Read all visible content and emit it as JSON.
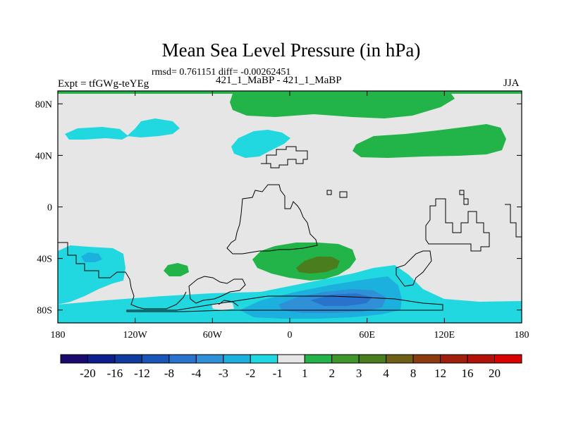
{
  "title": "Mean Sea Level Pressure (in hPa)",
  "stats_line": "rmsd= 0.761151 diff= -0.00262451",
  "experiment": "Expt = tfGWg-teYEg",
  "difference_label": "421_1_MaBP - 421_1_MaBP",
  "season": "JJA",
  "lon_ticks": [
    "180",
    "120W",
    "60W",
    "0",
    "60E",
    "120E",
    "180"
  ],
  "lat_ticks": [
    "80N",
    "40N",
    "0",
    "40S",
    "80S"
  ],
  "colorbar": {
    "labels": [
      "-20",
      "-16",
      "-12",
      "-8",
      "-4",
      "-3",
      "-2",
      "-1",
      "1",
      "2",
      "3",
      "4",
      "8",
      "12",
      "16",
      "20"
    ],
    "colors": [
      "#1a0a6e",
      "#0c1f8c",
      "#0f3a9e",
      "#1a55b8",
      "#2a73cc",
      "#2f90d8",
      "#1cb0de",
      "#22d8e0",
      "#e6e6e6",
      "#22b449",
      "#3f962a",
      "#4a7d1e",
      "#6e5e16",
      "#8c3a10",
      "#a01f0c",
      "#b01208",
      "#d80000"
    ]
  },
  "colors": {
    "background": "#e6e6e6",
    "cyan": "#22d8e0",
    "light_blue": "#1cb0de",
    "mid_blue": "#2f90d8",
    "blue": "#2a73cc",
    "green": "#22b449",
    "dark_green": "#4a7d1e"
  }
}
